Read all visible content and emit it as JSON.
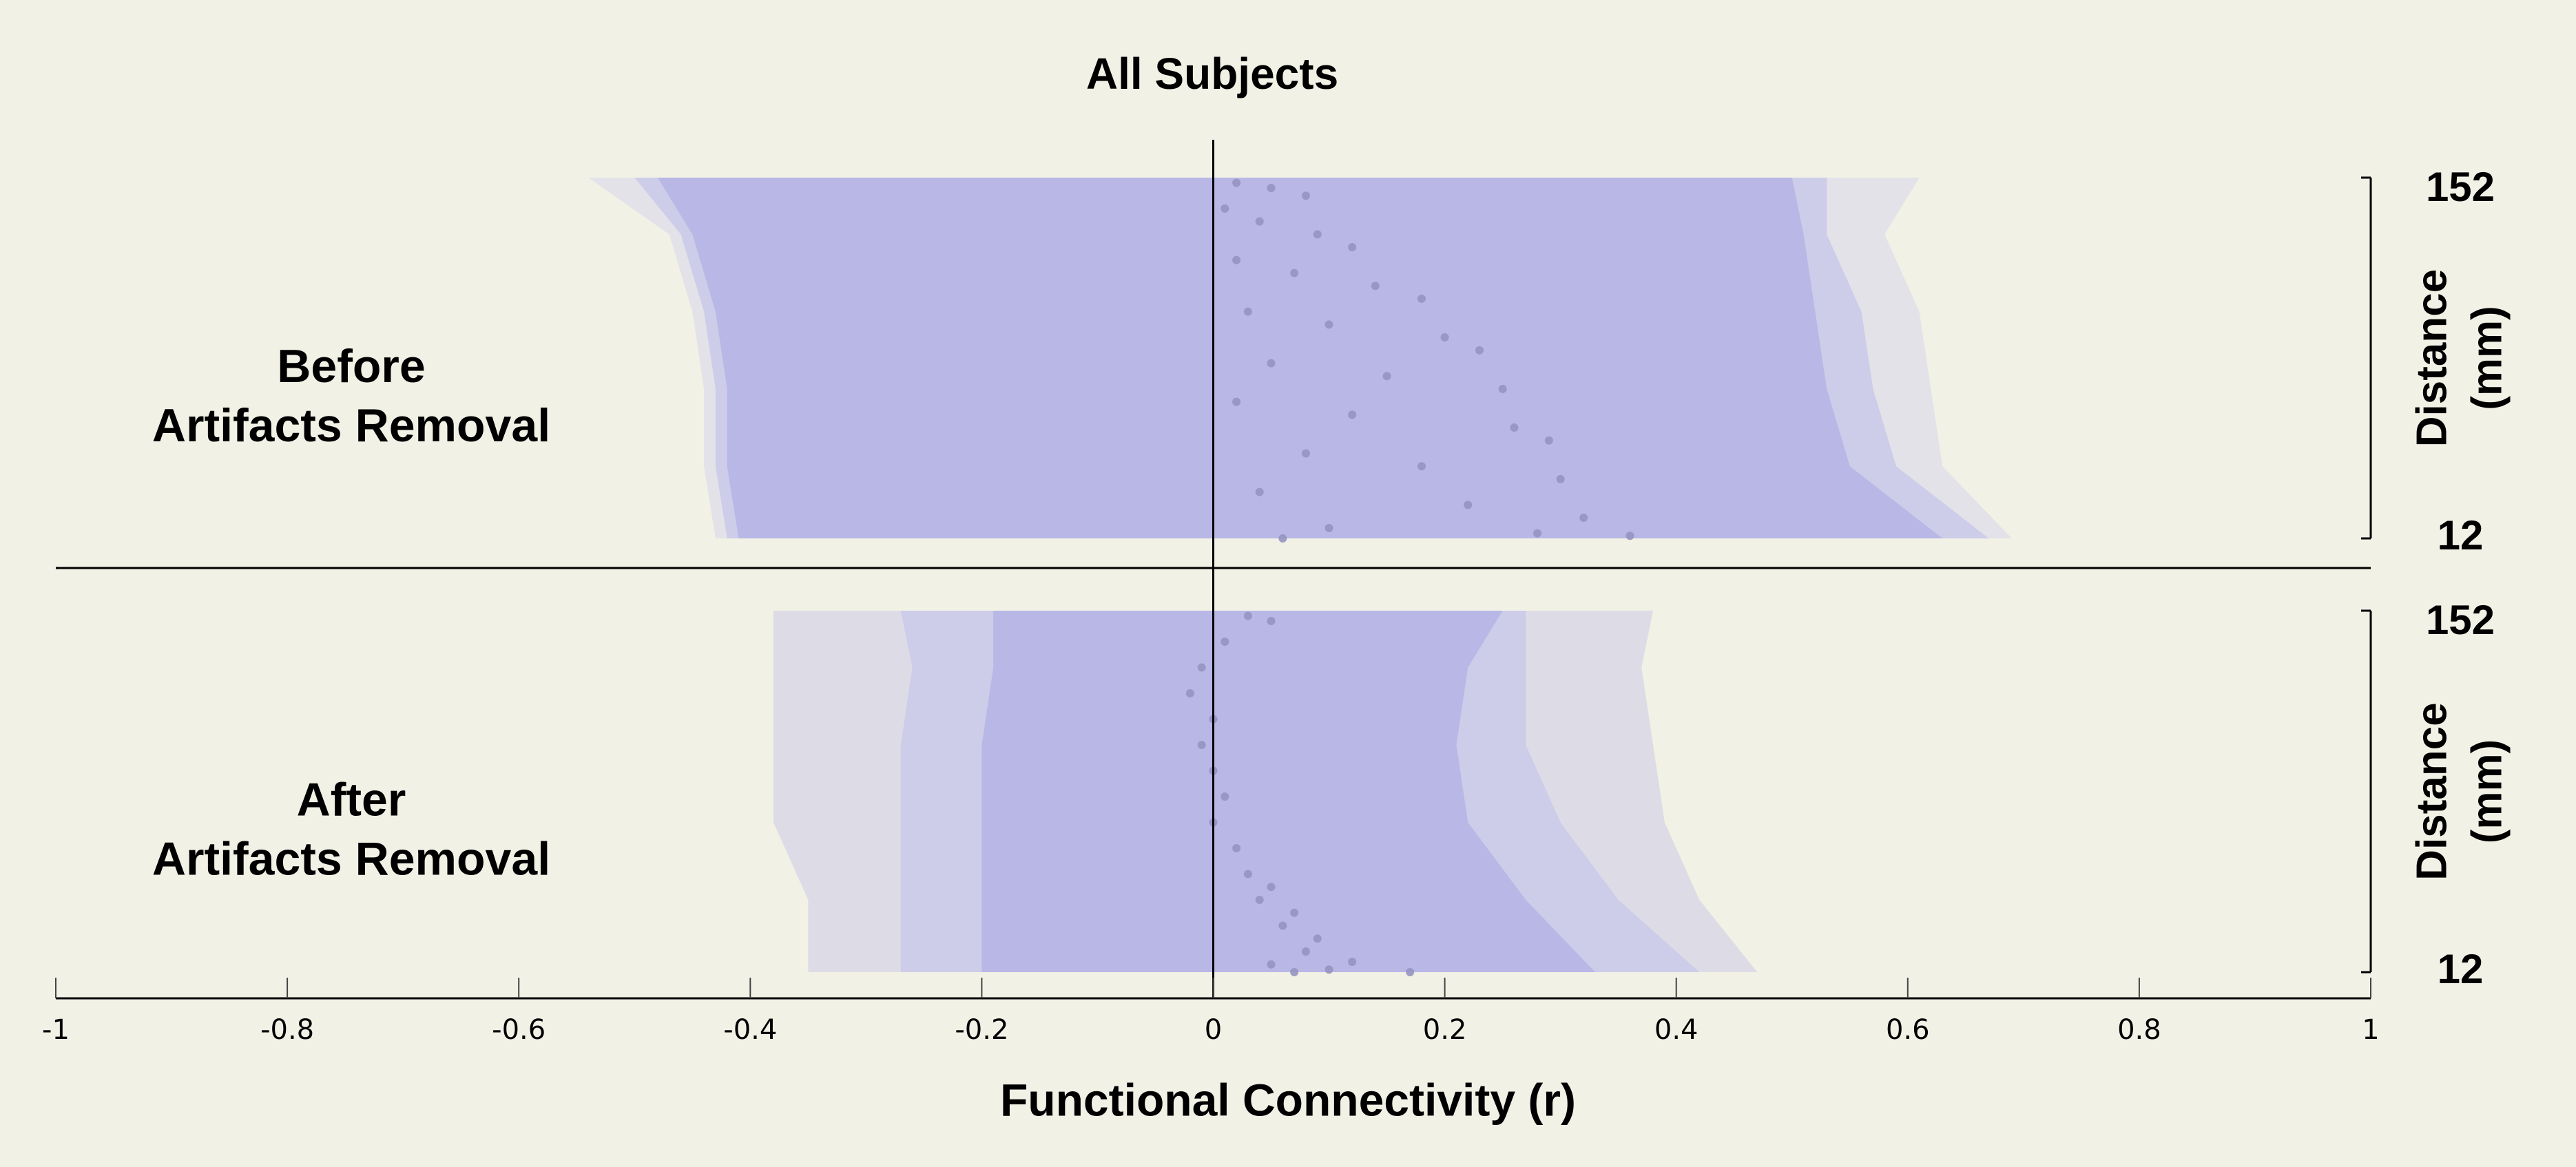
{
  "chart_data": {
    "type": "band",
    "title": "All Subjects",
    "xlabel": "Functional Connectivity (r)",
    "xlim": [
      -1,
      1
    ],
    "xticks": [
      -1,
      -0.8,
      -0.6,
      -0.4,
      -0.2,
      0,
      0.2,
      0.4,
      0.6,
      0.8,
      1
    ],
    "panels": [
      {
        "label": [
          "Before",
          "Artifacts Removal"
        ],
        "ylabel": [
          "Distance",
          "(mm)"
        ],
        "ylim": [
          12,
          152
        ],
        "yticks": [
          12,
          152
        ],
        "distances": [
          12,
          40,
          70,
          100,
          130,
          152
        ],
        "bands": [
          {
            "color": "#e3e2e9",
            "lower": [
              -0.43,
              -0.44,
              -0.44,
              -0.45,
              -0.47,
              -0.54
            ],
            "upper": [
              0.69,
              0.63,
              0.62,
              0.61,
              0.58,
              0.61
            ]
          },
          {
            "color": "#cdcce9",
            "lower": [
              -0.42,
              -0.43,
              -0.43,
              -0.44,
              -0.46,
              -0.5
            ],
            "upper": [
              0.67,
              0.59,
              0.57,
              0.56,
              0.53,
              0.53
            ]
          },
          {
            "color": "#b8b7e6",
            "lower": [
              -0.41,
              -0.42,
              -0.42,
              -0.43,
              -0.45,
              -0.48
            ],
            "upper": [
              0.63,
              0.55,
              0.53,
              0.52,
              0.51,
              0.5
            ]
          }
        ],
        "points": {
          "color": "#9694bf",
          "values": [
            0.02,
            0.05,
            0.08,
            0.01,
            0.04,
            0.09,
            0.12,
            0.02,
            0.07,
            0.14,
            0.18,
            0.03,
            0.1,
            0.2,
            0.23,
            0.05,
            0.15,
            0.25,
            0.02,
            0.12,
            0.26,
            0.29,
            0.08,
            0.18,
            0.3,
            0.04,
            0.22,
            0.32,
            0.1,
            0.28,
            0.36,
            0.06
          ],
          "distances": [
            150,
            148,
            145,
            140,
            135,
            130,
            125,
            120,
            115,
            110,
            105,
            100,
            95,
            90,
            85,
            80,
            75,
            70,
            65,
            60,
            55,
            50,
            45,
            40,
            35,
            30,
            25,
            20,
            16,
            14,
            13,
            12
          ]
        }
      },
      {
        "label": [
          "After",
          "Artifacts Removal"
        ],
        "ylabel": [
          "Distance",
          "(mm)"
        ],
        "ylim": [
          12,
          152
        ],
        "yticks": [
          12,
          152
        ],
        "distances": [
          12,
          40,
          70,
          100,
          130,
          152
        ],
        "bands": [
          {
            "color": "#dddce6",
            "lower": [
              -0.35,
              -0.35,
              -0.38,
              -0.38,
              -0.38,
              -0.38
            ],
            "upper": [
              0.47,
              0.42,
              0.39,
              0.38,
              0.37,
              0.38
            ]
          },
          {
            "color": "#cdcce9",
            "lower": [
              -0.27,
              -0.27,
              -0.27,
              -0.27,
              -0.26,
              -0.27
            ],
            "upper": [
              0.42,
              0.35,
              0.3,
              0.27,
              0.27,
              0.27
            ]
          },
          {
            "color": "#b8b7e6",
            "lower": [
              -0.2,
              -0.2,
              -0.2,
              -0.2,
              -0.19,
              -0.19
            ],
            "upper": [
              0.33,
              0.27,
              0.22,
              0.21,
              0.22,
              0.25
            ]
          }
        ],
        "points": {
          "color": "#9694bf",
          "values": [
            0.03,
            0.05,
            0.01,
            -0.01,
            -0.02,
            0,
            -0.01,
            0,
            0.01,
            0,
            0.02,
            0.03,
            0.05,
            0.04,
            0.07,
            0.06,
            0.09,
            0.08,
            0.12,
            0.05,
            0.1,
            0.17,
            0.07
          ],
          "distances": [
            150,
            148,
            140,
            130,
            120,
            110,
            100,
            90,
            80,
            70,
            60,
            50,
            45,
            40,
            35,
            30,
            25,
            20,
            16,
            15,
            13,
            12,
            12
          ]
        }
      }
    ]
  }
}
